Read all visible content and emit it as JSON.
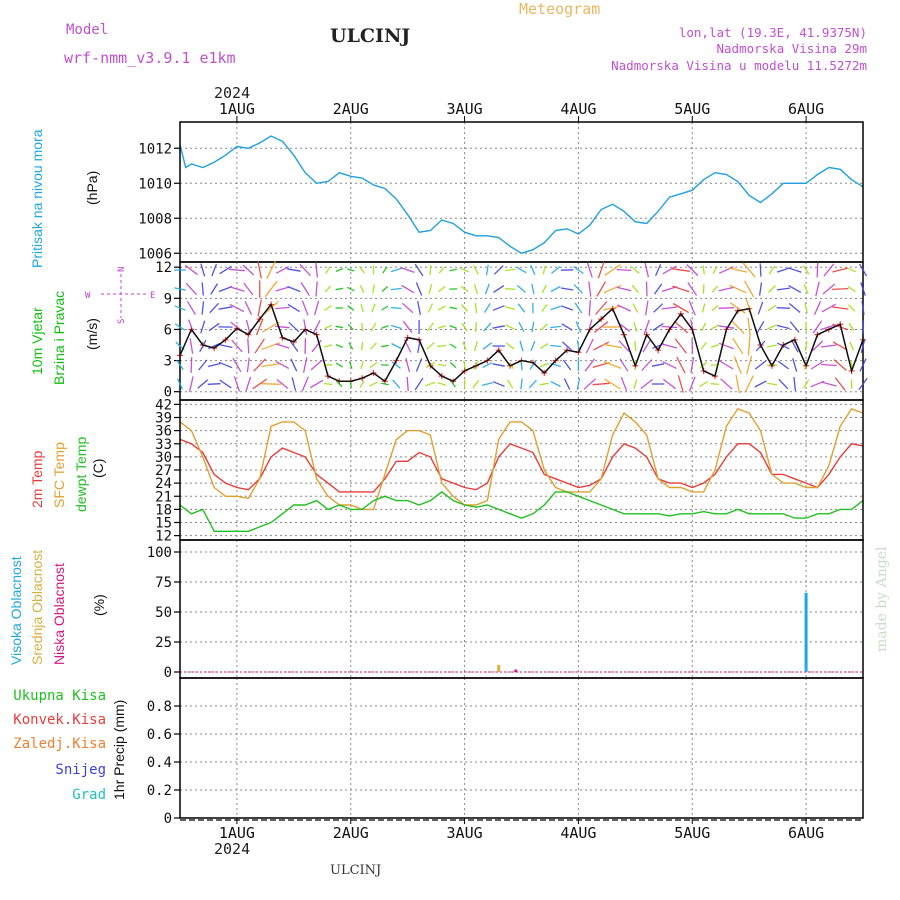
{
  "header": {
    "model_label": "Model",
    "model_name": "wrf-nmm_v3.9.1 e1km",
    "station": "ULCINJ",
    "title": "Meteogram",
    "coords": "lon,lat (19.3E, 41.9375N)",
    "altitude": "Nadmorska Visina 29m",
    "model_altitude": "Nadmorska Visina u modelu 11.5272m",
    "year": "2024",
    "footer_station": "ULCINJ",
    "watermark": "made by Angel"
  },
  "colors": {
    "pressure": "#1fa0e0",
    "wind": "#10c010",
    "wind_dir_label": "#c040d0",
    "temp2m": "#e83c3c",
    "sfc_temp": "#e0a030",
    "dewpt": "#20c020",
    "high_cloud": "#20a8e0",
    "mid_cloud": "#d8b040",
    "low_cloud": "#d01880",
    "total_rain": "#20c020",
    "conv_rain": "#e83c3c",
    "freezing": "#f08030",
    "snow": "#4040e0",
    "hail": "#20c0c0",
    "model_text": "#c050d0",
    "title_text": "#e8b860"
  },
  "chart_data": [
    {
      "type": "line",
      "panel": "pressure",
      "ylabel_1": "Pritisak na nivou mora",
      "ylabel_2": "(hPa)",
      "xlim": [
        0.5,
        6.5
      ],
      "ylim": [
        1005.5,
        1013.5
      ],
      "yticks": [
        1006,
        1008,
        1010,
        1012
      ],
      "x_tick_labels": [
        "1AUG",
        "2AUG",
        "3AUG",
        "4AUG",
        "5AUG",
        "6AUG"
      ],
      "x_tick_positions": [
        1,
        2,
        3,
        4,
        5,
        6
      ],
      "grid": true,
      "series": [
        {
          "x": [
            0.5,
            0.55,
            0.6,
            0.7,
            0.8,
            0.9,
            1.0,
            1.1,
            1.2,
            1.3,
            1.4,
            1.5,
            1.6,
            1.7,
            1.8,
            1.9,
            2.0,
            2.1,
            2.2,
            2.3,
            2.4,
            2.5,
            2.6,
            2.7,
            2.8,
            2.9,
            3.0,
            3.1,
            3.2,
            3.3,
            3.4,
            3.5,
            3.6,
            3.7,
            3.8,
            3.9,
            4.0,
            4.1,
            4.2,
            4.3,
            4.4,
            4.5,
            4.6,
            4.7,
            4.8,
            4.9,
            5.0,
            5.1,
            5.2,
            5.3,
            5.4,
            5.5,
            5.6,
            5.7,
            5.8,
            5.9,
            6.0,
            6.1,
            6.2,
            6.3,
            6.4,
            6.5
          ],
          "values": [
            1012.2,
            1010.9,
            1011.1,
            1010.9,
            1011.2,
            1011.6,
            1012.1,
            1012.0,
            1012.3,
            1012.7,
            1012.4,
            1011.6,
            1010.6,
            1010.0,
            1010.1,
            1010.6,
            1010.4,
            1010.3,
            1009.9,
            1009.7,
            1009.1,
            1008.2,
            1007.2,
            1007.3,
            1007.9,
            1007.7,
            1007.2,
            1007.0,
            1007.0,
            1006.9,
            1006.4,
            1006.0,
            1006.2,
            1006.6,
            1007.3,
            1007.4,
            1007.1,
            1007.6,
            1008.5,
            1008.8,
            1008.4,
            1007.8,
            1007.7,
            1008.4,
            1009.2,
            1009.4,
            1009.6,
            1010.2,
            1010.6,
            1010.5,
            1010.1,
            1009.3,
            1008.9,
            1009.4,
            1010.0,
            1010.0,
            1010.0,
            1010.5,
            1010.9,
            1010.8,
            1010.2,
            1009.8
          ]
        }
      ]
    },
    {
      "type": "line",
      "panel": "wind",
      "ylabel_1": "10m Vjetar",
      "ylabel_2": "Brzina i Pravac",
      "ylabel_3": "(m/s)",
      "compass": [
        "N",
        "W",
        "E",
        "S"
      ],
      "xlim": [
        0.5,
        6.5
      ],
      "ylim": [
        -0.8,
        12.5
      ],
      "yticks": [
        0,
        3,
        6,
        9,
        12
      ],
      "grid": true,
      "series": [
        {
          "x": [
            0.5,
            0.6,
            0.7,
            0.8,
            0.9,
            1.0,
            1.1,
            1.2,
            1.3,
            1.4,
            1.5,
            1.6,
            1.7,
            1.8,
            1.9,
            2.0,
            2.1,
            2.2,
            2.3,
            2.4,
            2.5,
            2.6,
            2.7,
            2.8,
            2.9,
            3.0,
            3.1,
            3.2,
            3.3,
            3.4,
            3.5,
            3.6,
            3.7,
            3.8,
            3.9,
            4.0,
            4.1,
            4.2,
            4.3,
            4.4,
            4.5,
            4.6,
            4.7,
            4.8,
            4.9,
            5.0,
            5.1,
            5.2,
            5.3,
            5.4,
            5.5,
            5.6,
            5.7,
            5.8,
            5.9,
            6.0,
            6.1,
            6.2,
            6.3,
            6.4,
            6.5
          ],
          "values": [
            3.5,
            6.0,
            4.5,
            4.2,
            5.0,
            6.1,
            5.5,
            7.0,
            8.4,
            5.2,
            4.8,
            6.0,
            5.5,
            1.5,
            1.0,
            1.0,
            1.3,
            1.8,
            1.0,
            3.0,
            5.2,
            5.0,
            2.5,
            1.5,
            1.0,
            2.0,
            2.5,
            3.0,
            4.0,
            2.5,
            3.0,
            2.8,
            1.8,
            3.0,
            4.0,
            3.8,
            6.0,
            7.0,
            8.0,
            5.5,
            2.5,
            5.5,
            4.0,
            6.0,
            7.5,
            6.0,
            2.0,
            1.5,
            6.0,
            7.8,
            8.0,
            4.5,
            2.5,
            4.5,
            5.0,
            2.5,
            5.5,
            6.0,
            6.5,
            2.0,
            5.0
          ]
        }
      ]
    },
    {
      "type": "line",
      "panel": "temperature",
      "ylabel_1": "2m Temp",
      "ylabel_2": "SFC Temp",
      "ylabel_3": "dewpt Temp",
      "ylabel_4": "(C)",
      "xlim": [
        0.5,
        6.5
      ],
      "ylim": [
        11,
        43
      ],
      "yticks": [
        12,
        15,
        18,
        21,
        24,
        27,
        30,
        33,
        36,
        39,
        42
      ],
      "grid": true,
      "series": [
        {
          "name": "2m Temp",
          "x": [
            0.5,
            0.6,
            0.7,
            0.8,
            0.9,
            1.0,
            1.1,
            1.2,
            1.3,
            1.4,
            1.5,
            1.6,
            1.7,
            1.8,
            1.9,
            2.0,
            2.1,
            2.2,
            2.3,
            2.4,
            2.5,
            2.6,
            2.7,
            2.8,
            2.9,
            3.0,
            3.1,
            3.2,
            3.3,
            3.4,
            3.5,
            3.6,
            3.7,
            3.8,
            3.9,
            4.0,
            4.1,
            4.2,
            4.3,
            4.4,
            4.5,
            4.6,
            4.7,
            4.8,
            4.9,
            5.0,
            5.1,
            5.2,
            5.3,
            5.4,
            5.5,
            5.6,
            5.7,
            5.8,
            5.9,
            6.0,
            6.1,
            6.2,
            6.3,
            6.4,
            6.5
          ],
          "values": [
            34,
            33,
            31,
            26,
            24,
            23,
            22.5,
            25,
            30,
            32,
            31,
            30,
            26,
            24,
            22,
            22,
            22,
            22,
            25,
            29,
            29,
            31,
            30,
            25,
            24,
            23,
            22.5,
            24,
            30,
            33,
            32,
            31,
            26,
            25,
            24,
            23,
            23.5,
            25,
            30,
            33,
            32,
            30,
            25,
            24,
            24,
            23,
            24,
            26,
            30,
            33,
            33,
            31,
            26,
            26,
            25,
            24,
            23,
            26,
            30,
            33,
            32.5
          ]
        },
        {
          "name": "SFC Temp",
          "x": [
            0.5,
            0.6,
            0.7,
            0.8,
            0.9,
            1.0,
            1.1,
            1.2,
            1.3,
            1.4,
            1.5,
            1.6,
            1.7,
            1.8,
            1.9,
            2.0,
            2.1,
            2.2,
            2.3,
            2.4,
            2.5,
            2.6,
            2.7,
            2.8,
            2.9,
            3.0,
            3.1,
            3.2,
            3.3,
            3.4,
            3.5,
            3.6,
            3.7,
            3.8,
            3.9,
            4.0,
            4.1,
            4.2,
            4.3,
            4.4,
            4.5,
            4.6,
            4.7,
            4.8,
            4.9,
            5.0,
            5.1,
            5.2,
            5.3,
            5.4,
            5.5,
            5.6,
            5.7,
            5.8,
            5.9,
            6.0,
            6.1,
            6.2,
            6.3,
            6.4,
            6.5
          ],
          "values": [
            38,
            36,
            30,
            23,
            21,
            21,
            20.5,
            25,
            37,
            38,
            38,
            36,
            25,
            21,
            19,
            19,
            18,
            18,
            26,
            34,
            36,
            36,
            35,
            24,
            21,
            19,
            19,
            20,
            34,
            38,
            38,
            36,
            27,
            23,
            22,
            22,
            22,
            25,
            35,
            40,
            38,
            35,
            25,
            23,
            23,
            22,
            22,
            27,
            37,
            41,
            40,
            36,
            26,
            24,
            24,
            23,
            23,
            28,
            37,
            41,
            40
          ]
        },
        {
          "name": "dewpt Temp",
          "x": [
            0.5,
            0.6,
            0.7,
            0.8,
            0.9,
            1.0,
            1.1,
            1.2,
            1.3,
            1.4,
            1.5,
            1.6,
            1.7,
            1.8,
            1.9,
            2.0,
            2.1,
            2.2,
            2.3,
            2.4,
            2.5,
            2.6,
            2.7,
            2.8,
            2.9,
            3.0,
            3.1,
            3.2,
            3.3,
            3.4,
            3.5,
            3.6,
            3.7,
            3.8,
            3.9,
            4.0,
            4.1,
            4.2,
            4.3,
            4.4,
            4.5,
            4.6,
            4.7,
            4.8,
            4.9,
            5.0,
            5.1,
            5.2,
            5.3,
            5.4,
            5.5,
            5.6,
            5.7,
            5.8,
            5.9,
            6.0,
            6.1,
            6.2,
            6.3,
            6.4,
            6.5
          ],
          "values": [
            19,
            17,
            18,
            13,
            13,
            13,
            13,
            14,
            15,
            17,
            19,
            19,
            20,
            18,
            19,
            18,
            18,
            20,
            21,
            20,
            20,
            19,
            20,
            22,
            20,
            19,
            18.5,
            19,
            18,
            17,
            16,
            17,
            19,
            22,
            22,
            21,
            20,
            19,
            18,
            17,
            17,
            17,
            17,
            16.5,
            17,
            17,
            17.5,
            17,
            17,
            18,
            17,
            17,
            17,
            17,
            16,
            16,
            17,
            17,
            18,
            18,
            20
          ]
        }
      ]
    },
    {
      "type": "bar",
      "panel": "cloud",
      "ylabel_1": "Visoka Oblacnost",
      "ylabel_2": "Srednja Oblacnost",
      "ylabel_3": "Niska Oblacnost",
      "ylabel_4": "(%)",
      "xlim": [
        0.5,
        6.5
      ],
      "ylim": [
        -5,
        110
      ],
      "yticks": [
        0,
        25,
        50,
        75,
        100
      ],
      "grid": true,
      "series": [
        {
          "name": "Visoka Oblacnost",
          "x": [
            6.0
          ],
          "values": [
            66
          ]
        },
        {
          "name": "Srednja Oblacnost",
          "x": [
            3.3
          ],
          "values": [
            6
          ]
        },
        {
          "name": "Niska Oblacnost",
          "x": [
            3.45
          ],
          "values": [
            2
          ]
        }
      ]
    },
    {
      "type": "bar",
      "panel": "precipitation",
      "ylabel": "1hr Precip (mm)",
      "legend": [
        "Ukupna Kisa",
        "Konvek.Kisa",
        "Zaledj.Kisa",
        "Snijeg",
        "Grad"
      ],
      "xlim": [
        0.5,
        6.5
      ],
      "ylim": [
        0,
        1.0
      ],
      "yticks": [
        0,
        0.2,
        0.4,
        0.6,
        0.8
      ],
      "x_tick_labels": [
        "1AUG",
        "2AUG",
        "3AUG",
        "4AUG",
        "5AUG",
        "6AUG"
      ],
      "x_tick_positions": [
        1,
        2,
        3,
        4,
        5,
        6
      ],
      "grid": true,
      "series": [
        {
          "name": "Ukupna Kisa",
          "values": []
        }
      ]
    }
  ]
}
